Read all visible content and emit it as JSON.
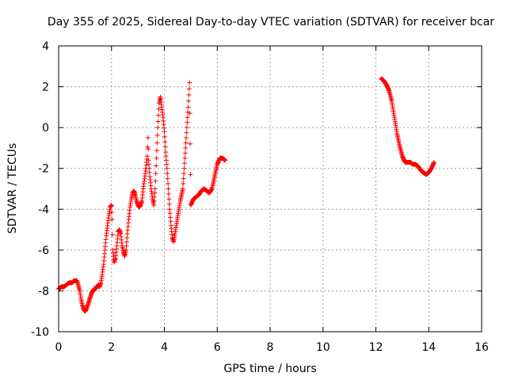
{
  "chart_data": {
    "type": "scatter",
    "title": "Day 355 of 2025, Sidereal Day-to-day VTEC variation (SDTVAR) for receiver bcar",
    "xlabel": "GPS time / hours",
    "ylabel": "SDTVAR / TECUs",
    "xlim": [
      0,
      16
    ],
    "ylim": [
      -10,
      4
    ],
    "xticks": [
      "0",
      "2",
      "4",
      "6",
      "8",
      "10",
      "12",
      "14",
      "16"
    ],
    "yticks": [
      "-10",
      "-8",
      "-6",
      "-4",
      "-2",
      "0",
      "2",
      "4"
    ],
    "grid": true,
    "marker": "+",
    "color": "#ff0000",
    "series": [
      {
        "name": "SDTVAR",
        "x": [
          0.0,
          0.1,
          0.2,
          0.3,
          0.4,
          0.5,
          0.6,
          0.7,
          0.8,
          0.85,
          0.9,
          0.95,
          1.0,
          1.05,
          1.1,
          1.15,
          1.2,
          1.25,
          1.3,
          1.35,
          1.4,
          1.45,
          1.5,
          1.55,
          1.6,
          1.65,
          1.7,
          1.75,
          1.8,
          1.85,
          1.9,
          1.95,
          2.0,
          2.02,
          2.05,
          2.1,
          2.15,
          2.2,
          2.25,
          2.3,
          2.35,
          2.4,
          2.45,
          2.5,
          2.55,
          2.6,
          2.65,
          2.7,
          2.75,
          2.8,
          2.85,
          2.9,
          2.95,
          3.0,
          3.05,
          3.1,
          3.15,
          3.2,
          3.25,
          3.3,
          3.35,
          3.38,
          3.4,
          3.45,
          3.5,
          3.55,
          3.6,
          3.65,
          3.7,
          3.75,
          3.8,
          3.85,
          3.9,
          3.95,
          4.0,
          4.05,
          4.1,
          4.15,
          4.2,
          4.25,
          4.3,
          4.35,
          4.4,
          4.45,
          4.5,
          4.55,
          4.6,
          4.65,
          4.7,
          4.75,
          4.8,
          4.85,
          4.9,
          4.95,
          5.0,
          5.1,
          5.2,
          5.3,
          5.4,
          5.5,
          5.6,
          5.7,
          5.8,
          5.9,
          6.0,
          6.1,
          6.2,
          6.3,
          12.2,
          12.3,
          12.4,
          12.5,
          12.6,
          12.7,
          12.8,
          12.9,
          13.0,
          13.1,
          13.2,
          13.3,
          13.4,
          13.5,
          13.6,
          13.7,
          13.8,
          13.9,
          14.0,
          14.1,
          14.2
        ],
        "y": [
          -7.9,
          -7.8,
          -7.8,
          -7.7,
          -7.6,
          -7.6,
          -7.5,
          -7.5,
          -8.0,
          -8.4,
          -8.7,
          -8.9,
          -9.0,
          -8.9,
          -8.7,
          -8.5,
          -8.3,
          -8.1,
          -8.0,
          -7.9,
          -7.9,
          -7.8,
          -7.7,
          -7.8,
          -7.6,
          -7.2,
          -6.7,
          -6.0,
          -5.3,
          -4.8,
          -4.3,
          -3.9,
          -3.8,
          -4.5,
          -6.0,
          -6.6,
          -6.4,
          -5.8,
          -5.1,
          -5.0,
          -5.2,
          -5.8,
          -6.1,
          -6.3,
          -6.0,
          -5.2,
          -4.5,
          -3.9,
          -3.5,
          -3.2,
          -3.1,
          -3.3,
          -3.6,
          -3.8,
          -3.9,
          -3.8,
          -3.6,
          -3.0,
          -2.5,
          -2.0,
          -1.4,
          -0.5,
          -1.6,
          -2.4,
          -3.0,
          -3.5,
          -3.8,
          -3.0,
          -1.5,
          0.0,
          1.2,
          1.5,
          1.0,
          0.5,
          -0.2,
          -1.2,
          -2.0,
          -3.0,
          -4.0,
          -4.8,
          -5.4,
          -5.6,
          -5.2,
          -4.8,
          -4.4,
          -4.0,
          -3.6,
          -3.3,
          -3.0,
          -2.0,
          -1.0,
          0.0,
          1.0,
          2.2,
          -3.8,
          -3.5,
          -3.4,
          -3.3,
          -3.1,
          -3.0,
          -3.1,
          -3.2,
          -3.0,
          -2.4,
          -1.8,
          -1.5,
          -1.5,
          -1.6,
          2.4,
          2.3,
          2.1,
          1.8,
          1.3,
          0.5,
          -0.3,
          -0.9,
          -1.4,
          -1.7,
          -1.7,
          -1.7,
          -1.8,
          -1.8,
          -1.9,
          -2.1,
          -2.2,
          -2.3,
          -2.2,
          -2.0,
          -1.7
        ]
      }
    ]
  }
}
